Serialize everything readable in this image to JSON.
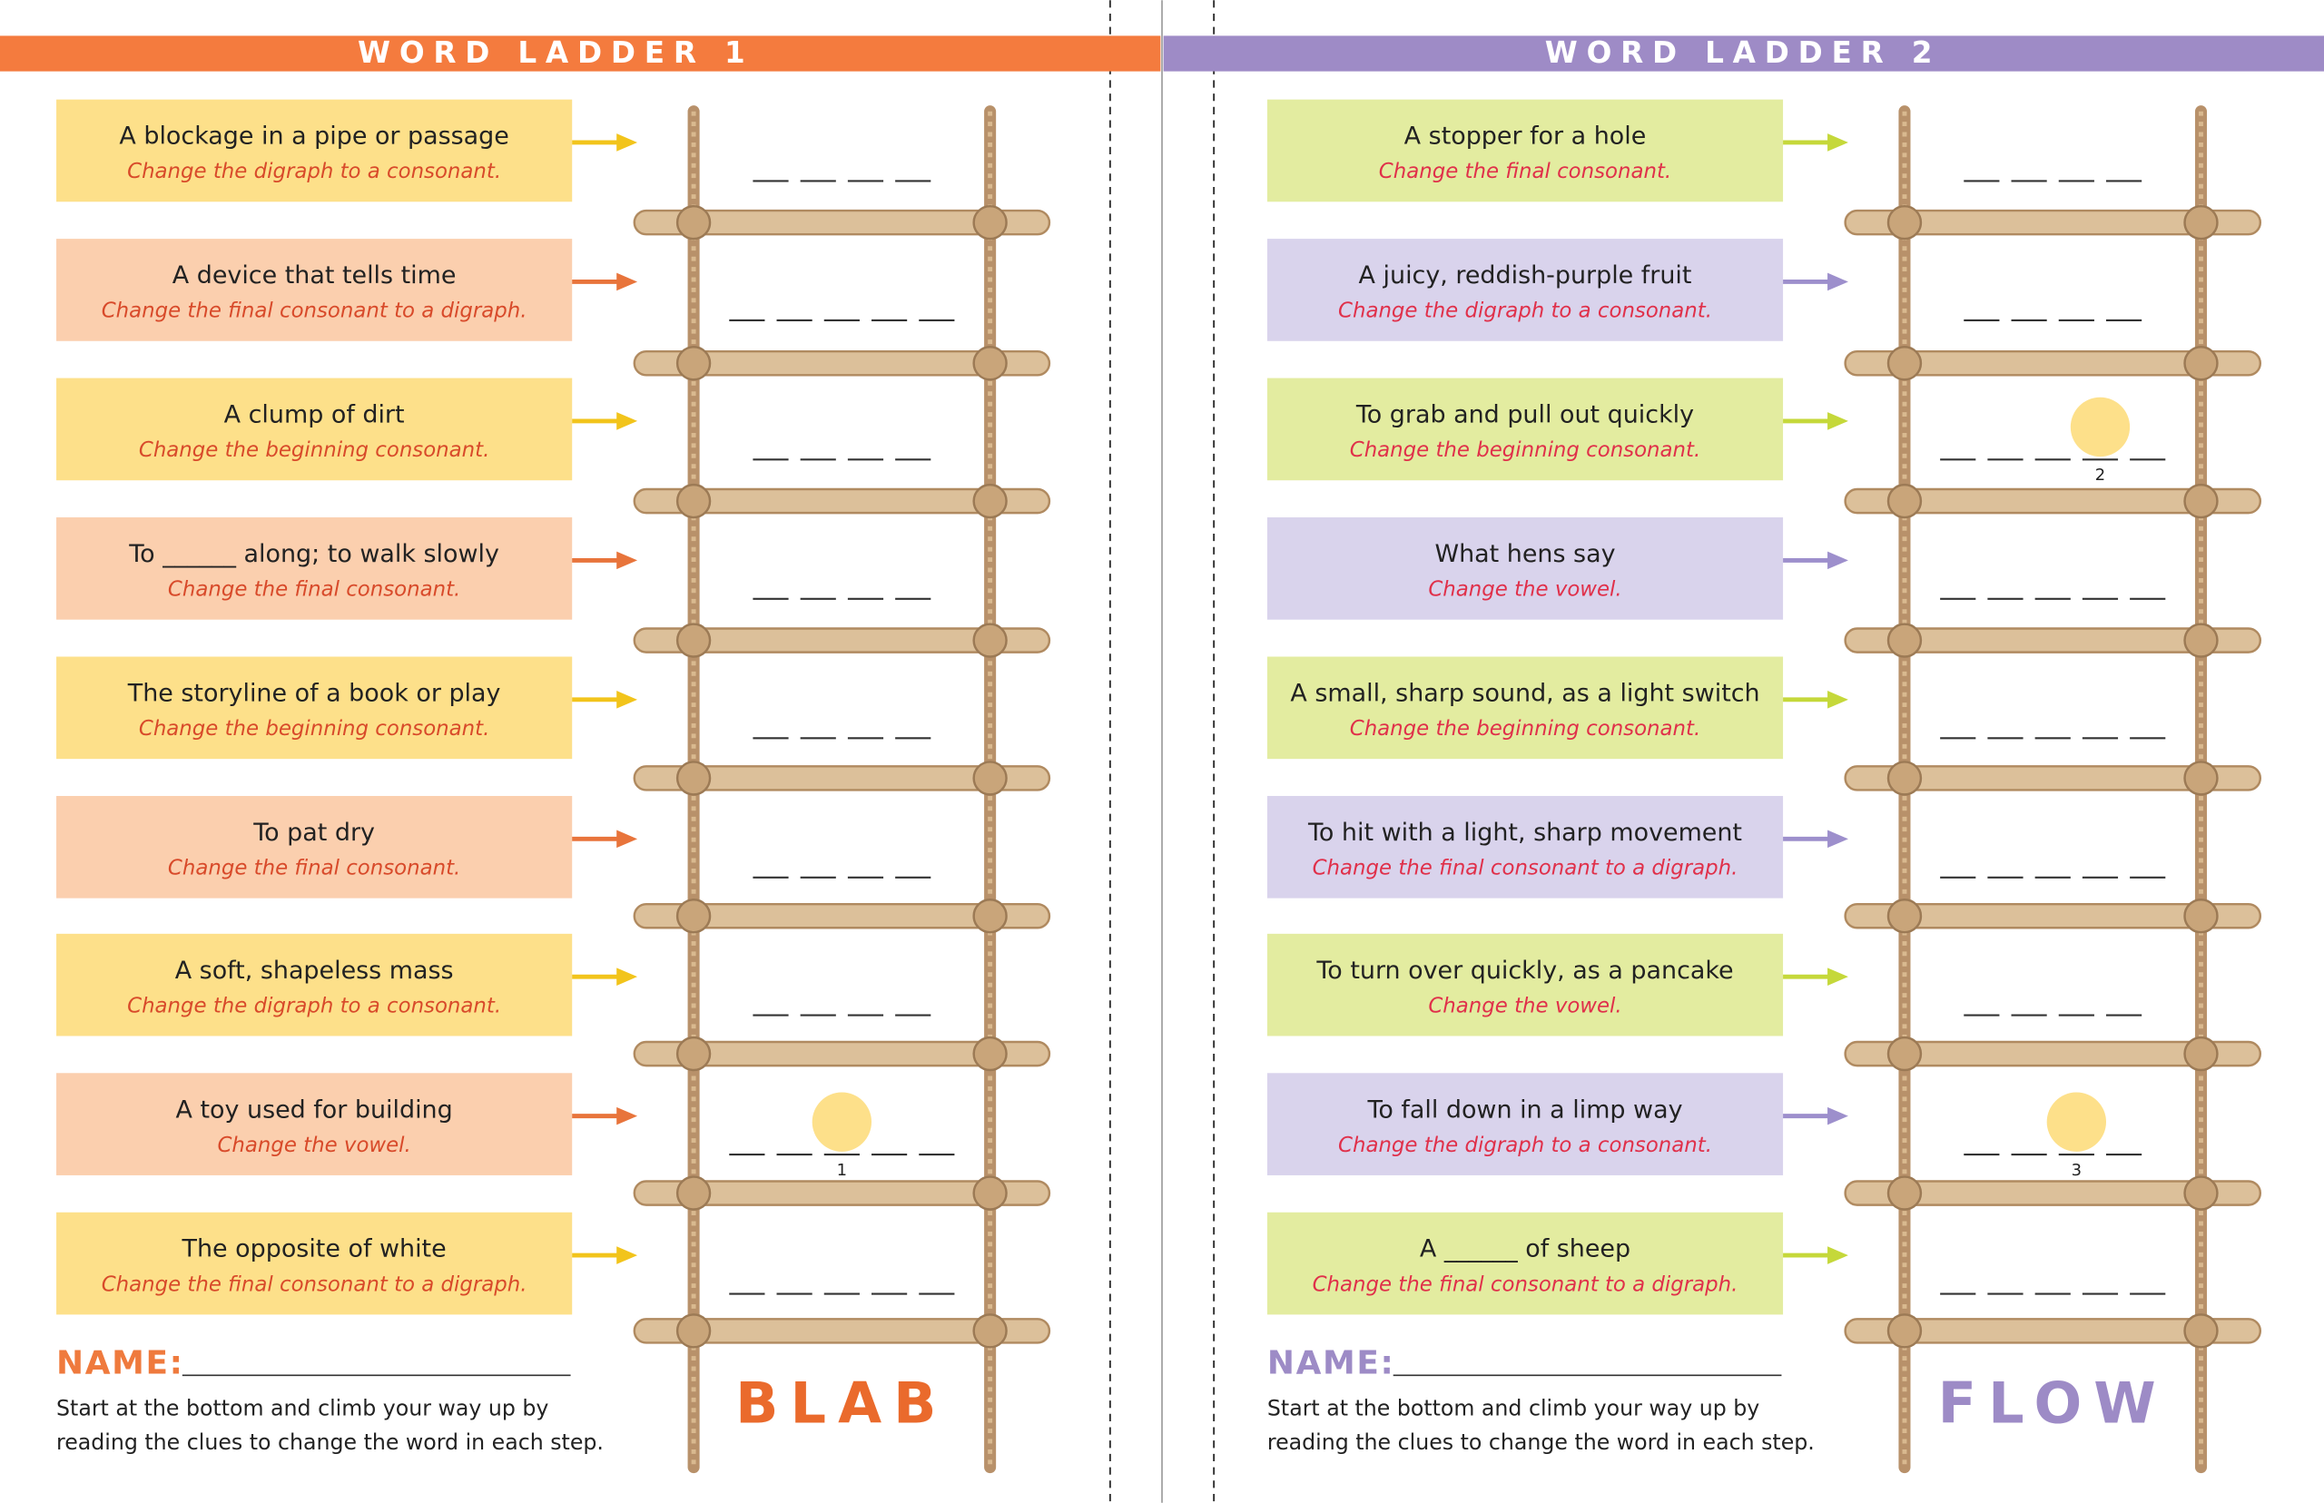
{
  "ladders": [
    {
      "title": "WORD LADDER 1",
      "name_label": "NAME:",
      "instructions": [
        "Start at the bottom and climb your way up by",
        "reading the clues to change the word in each step."
      ],
      "start_word": "BLAB",
      "clues": [
        {
          "text": "A blockage in a pipe or passage",
          "hint": "Change the digraph to a consonant.",
          "blanks": 4
        },
        {
          "text": "A device that tells time",
          "hint": "Change the final consonant to a digraph.",
          "blanks": 5
        },
        {
          "text": "A clump of dirt",
          "hint": "Change the beginning consonant.",
          "blanks": 4
        },
        {
          "text": "To ______ along; to walk slowly",
          "hint": "Change the final consonant.",
          "blanks": 4
        },
        {
          "text": "The storyline of a book or play",
          "hint": "Change the beginning consonant.",
          "blanks": 4
        },
        {
          "text": "To pat dry",
          "hint": "Change the final consonant.",
          "blanks": 4
        },
        {
          "text": "A soft, shapeless mass",
          "hint": "Change the digraph to a consonant.",
          "blanks": 4
        },
        {
          "text": "A toy used for building",
          "hint": "Change the vowel.",
          "blanks": 5,
          "circle": {
            "blank": 3,
            "label": "1"
          }
        },
        {
          "text": "The opposite of white",
          "hint": "Change the final consonant to a digraph.",
          "blanks": 5
        }
      ]
    },
    {
      "title": "WORD LADDER 2",
      "name_label": "NAME:",
      "instructions": [
        "Start at the bottom and climb your way up by",
        "reading the clues to change the word in each step."
      ],
      "start_word": "FLOW",
      "clues": [
        {
          "text": "A stopper for a hole",
          "hint": "Change the final consonant.",
          "blanks": 4
        },
        {
          "text": "A juicy, reddish-purple fruit",
          "hint": "Change the digraph to a consonant.",
          "blanks": 4
        },
        {
          "text": "To grab and pull out quickly",
          "hint": "Change the beginning consonant.",
          "blanks": 5,
          "circle": {
            "blank": 4,
            "label": "2"
          }
        },
        {
          "text": "What hens say",
          "hint": "Change the vowel.",
          "blanks": 5
        },
        {
          "text": "A small, sharp sound, as a light switch",
          "hint": "Change the beginning consonant.",
          "blanks": 5
        },
        {
          "text": "To hit with a light, sharp movement",
          "hint": "Change the final consonant to a digraph.",
          "blanks": 5
        },
        {
          "text": "To turn over quickly, as a pancake",
          "hint": "Change the vowel.",
          "blanks": 4
        },
        {
          "text": "To fall down in a limp way",
          "hint": "Change the digraph to a consonant.",
          "blanks": 4,
          "circle": {
            "blank": 3,
            "label": "3"
          }
        },
        {
          "text": "A ______ of sheep",
          "hint": "Change the final consonant to a digraph.",
          "blanks": 5
        }
      ]
    }
  ]
}
